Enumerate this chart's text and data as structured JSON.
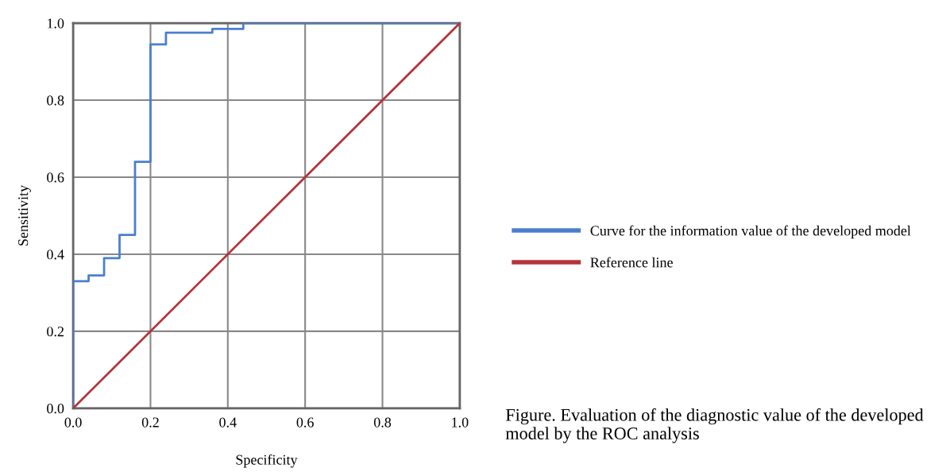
{
  "chart_data": {
    "type": "line",
    "xlabel": "Specificity",
    "ylabel": "Sensitivity",
    "series": [
      {
        "name": "Curve for the information value of the developed model",
        "type": "step",
        "color": "#4a7fcf",
        "x": [
          0,
          0,
          0.04,
          0.08,
          0.12,
          0.16,
          0.2,
          0.24,
          0.36,
          0.44,
          1.0
        ],
        "values": [
          0,
          0.33,
          0.345,
          0.39,
          0.45,
          0.64,
          0.945,
          0.975,
          0.985,
          1.0,
          1.0
        ]
      },
      {
        "name": "Reference line",
        "color": "#b5343a",
        "x": [
          0,
          1
        ],
        "values": [
          0,
          1
        ]
      }
    ],
    "xlim": [
      0,
      1
    ],
    "ylim": [
      0,
      1
    ],
    "xticks": [
      {
        "value": 0,
        "label": "0.0"
      },
      0.2,
      0.4,
      0.6,
      0.8,
      {
        "value": 1,
        "label": "1.0"
      }
    ],
    "yticks": [
      {
        "value": 0,
        "label": "0.0"
      },
      0.2,
      0.4,
      0.6,
      0.8,
      {
        "value": 1,
        "label": "1.0"
      }
    ],
    "grid": true,
    "legend": "right",
    "marker": "none",
    "line_style": "solid",
    "annotations": [
      "Figure. Evaluation of the diagnostic value of the developed model by the ROC analysis"
    ]
  }
}
